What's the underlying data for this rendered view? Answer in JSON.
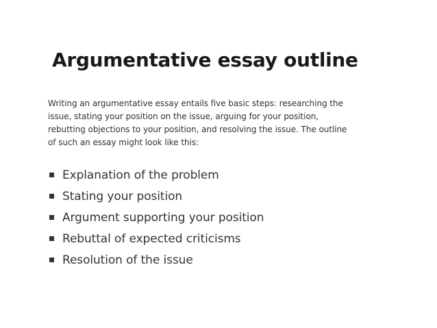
{
  "slide": {
    "title": "Argumentative essay outline",
    "intro_lines": [
      "Writing an argumentative essay entails five basic steps: researching the",
      "issue, stating your position on the issue, arguing for your position,",
      "rebutting objections to your position, and resolving the issue. The outline",
      "of such an essay might look like this:"
    ],
    "bullets": [
      "Explanation of the problem",
      "Stating your position",
      "Argument supporting your position",
      "Rebuttal of expected criticisms",
      "Resolution of the issue"
    ]
  }
}
